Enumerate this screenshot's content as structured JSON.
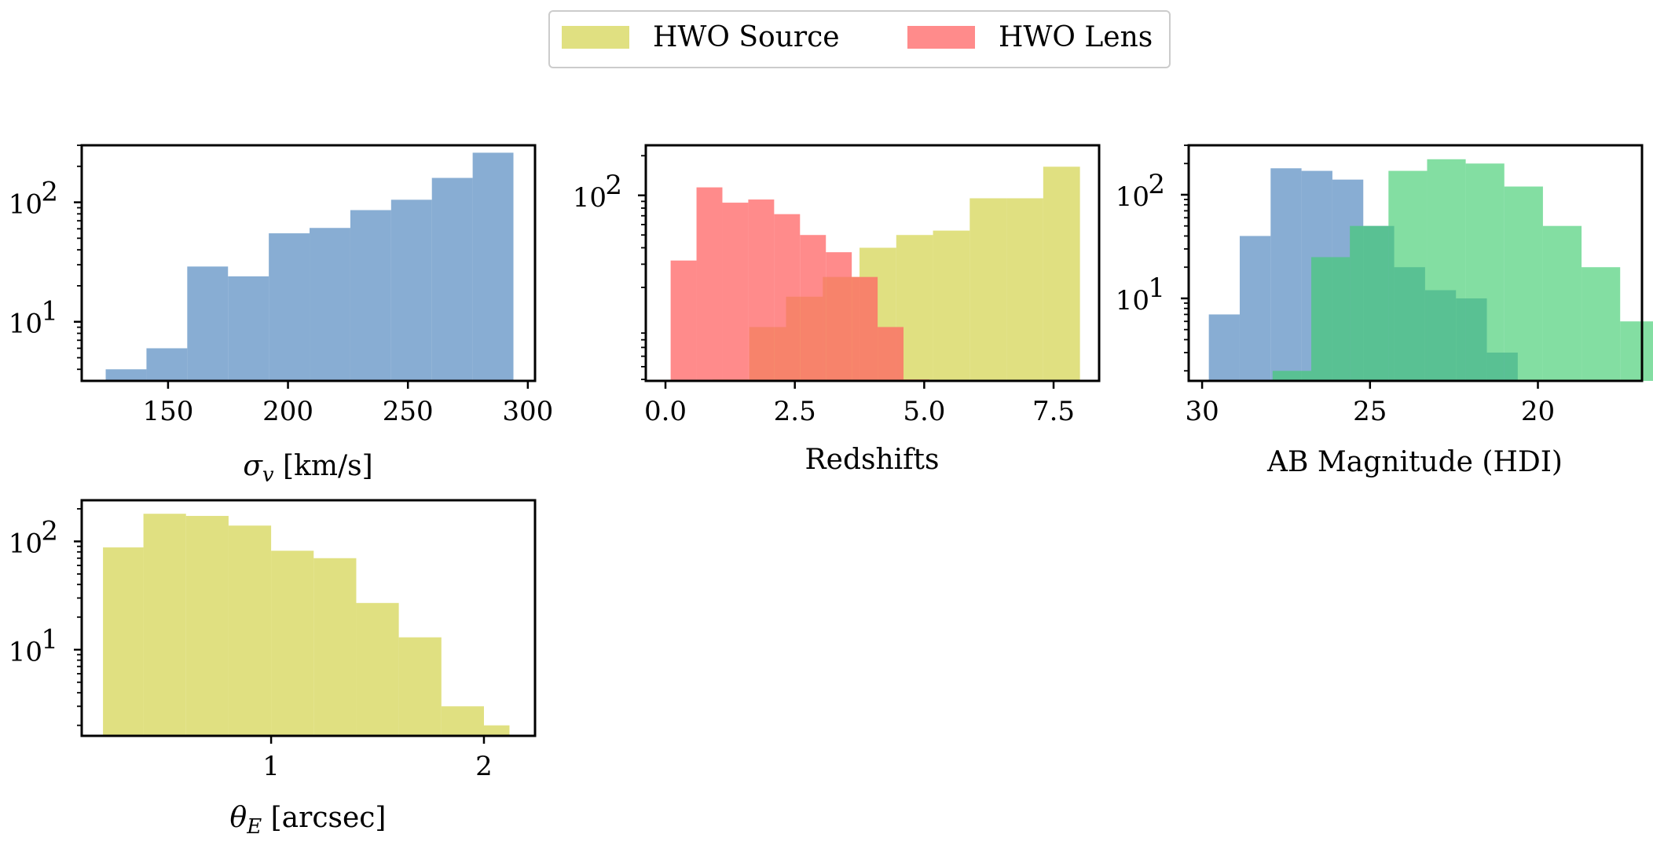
{
  "colors": {
    "source": "#d4d450",
    "lens": "#ff6464",
    "sigma": "#5a8ec2",
    "mag_lens": "#5a8ec2",
    "mag_source": "#40cc70"
  },
  "legend": {
    "source_label": "HWO Source",
    "lens_label": "HWO Lens",
    "location": "upper center"
  },
  "chart_data": [
    {
      "id": "sigma",
      "type": "bar",
      "title": "",
      "xlabel": "σ_v [km/s]",
      "ylabel": "",
      "yscale": "log",
      "xlim": [
        114,
        303
      ],
      "ylim": [
        3.2,
        300
      ],
      "xticks": [
        150,
        200,
        250,
        300
      ],
      "xtick_labels": [
        "150",
        "200",
        "250",
        "300"
      ],
      "ytick_labels": [
        {
          "value": 10,
          "base": "10",
          "exp": "1"
        },
        {
          "value": 100,
          "base": "10",
          "exp": "2"
        }
      ],
      "series": [
        {
          "name": "HWO Lens σ_v",
          "color_key": "sigma",
          "opacity": 0.72,
          "edges": [
            124,
            141,
            158,
            175,
            192,
            209,
            226,
            243,
            260,
            277,
            294
          ],
          "counts": [
            4,
            6,
            29,
            24,
            55,
            61,
            86,
            105,
            160,
            260
          ]
        }
      ]
    },
    {
      "id": "redshift",
      "type": "bar",
      "title": "",
      "xlabel": "Redshifts",
      "ylabel": "",
      "yscale": "log",
      "xlim": [
        -0.38,
        8.38
      ],
      "ylim": [
        3.9,
        240
      ],
      "xticks": [
        0.0,
        2.5,
        5.0,
        7.5
      ],
      "xtick_labels": [
        "0.0",
        "2.5",
        "5.0",
        "7.5"
      ],
      "ytick_labels": [
        {
          "value": 100,
          "base": "10",
          "exp": "2"
        }
      ],
      "series": [
        {
          "name": "HWO Source",
          "color_key": "source",
          "opacity": 0.72,
          "edges": [
            0.91,
            1.62,
            2.33,
            3.04,
            3.75,
            4.46,
            5.17,
            5.88,
            6.59,
            7.3,
            8.01
          ],
          "counts": [
            4,
            10,
            17,
            24,
            40,
            50,
            54,
            95,
            95,
            165
          ]
        },
        {
          "name": "HWO Lens",
          "color_key": "lens",
          "opacity": 0.75,
          "edges": [
            0.1,
            0.6,
            1.1,
            1.6,
            2.1,
            2.6,
            3.1,
            3.6,
            4.1,
            4.6,
            5.1
          ],
          "counts": [
            32,
            115,
            88,
            93,
            72,
            50,
            37,
            24,
            10,
            4
          ]
        }
      ]
    },
    {
      "id": "magnitude",
      "type": "bar",
      "title": "",
      "xlabel": "AB Magnitude (HDI)",
      "ylabel": "",
      "yscale": "log",
      "xlim": [
        30.4,
        16.9
      ],
      "ylim": [
        1.6,
        300
      ],
      "xticks": [
        30,
        25,
        20
      ],
      "xtick_labels": [
        "30",
        "25",
        "20"
      ],
      "ytick_labels": [
        {
          "value": 10,
          "base": "10",
          "exp": "1"
        },
        {
          "value": 100,
          "base": "10",
          "exp": "2"
        }
      ],
      "series": [
        {
          "name": "HWO Lens",
          "color_key": "mag_lens",
          "opacity": 0.72,
          "edges": [
            29.8,
            28.88,
            27.96,
            27.04,
            26.12,
            25.2,
            24.28,
            23.36,
            22.44,
            21.52,
            20.6
          ],
          "counts": [
            7,
            40,
            180,
            170,
            140,
            50,
            20,
            12,
            10,
            3
          ]
        },
        {
          "name": "HWO Source",
          "color_key": "mag_source",
          "opacity": 0.65,
          "edges": [
            27.9,
            26.75,
            25.6,
            24.45,
            23.3,
            22.15,
            21.0,
            19.85,
            18.7,
            17.55,
            16.4
          ],
          "counts": [
            2,
            25,
            50,
            170,
            220,
            200,
            120,
            50,
            20,
            6
          ]
        }
      ]
    },
    {
      "id": "theta",
      "type": "bar",
      "title": "",
      "xlabel": "θ_E [arcsec]",
      "ylabel": "",
      "yscale": "log",
      "xlim": [
        0.11,
        2.24
      ],
      "ylim": [
        1.6,
        240
      ],
      "xticks": [
        1,
        2
      ],
      "xtick_labels": [
        "1",
        "2"
      ],
      "ytick_labels": [
        {
          "value": 10,
          "base": "10",
          "exp": "1"
        },
        {
          "value": 100,
          "base": "10",
          "exp": "2"
        }
      ],
      "series": [
        {
          "name": "HWO Source θ_E",
          "color_key": "source",
          "opacity": 0.72,
          "edges": [
            0.21,
            0.4,
            0.6,
            0.8,
            1.0,
            1.2,
            1.4,
            1.6,
            1.8,
            2.0,
            2.12
          ],
          "counts": [
            88,
            180,
            172,
            140,
            82,
            70,
            27,
            13,
            3,
            2
          ]
        }
      ]
    }
  ]
}
